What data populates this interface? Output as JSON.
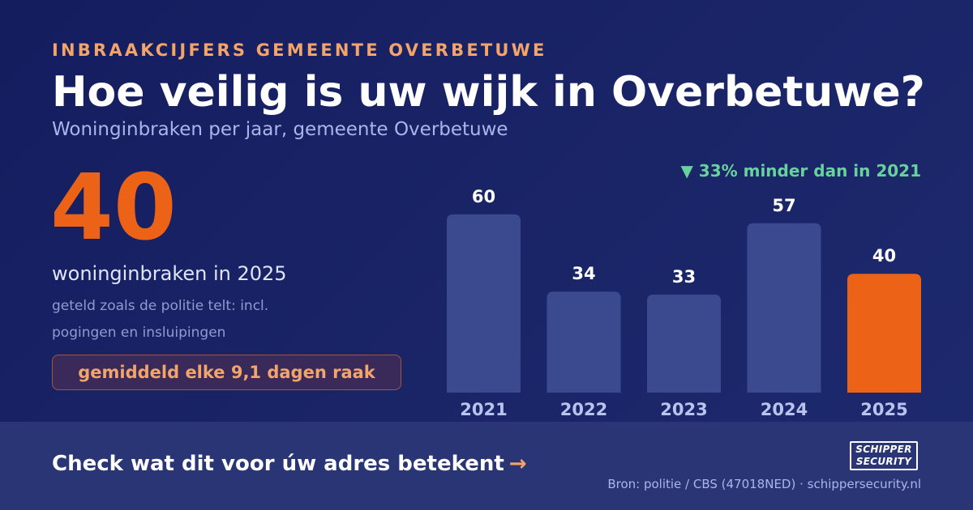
{
  "header": {
    "eyebrow": "INBRAAKCIJFERS GEMEENTE OVERBETUWE",
    "title": "Hoe veilig is uw wijk in Overbetuwe?",
    "subtitle": "Woninginbraken per jaar, gemeente Overbetuwe"
  },
  "highlight": {
    "number": "40",
    "caption": "woninginbraken in 2025",
    "note": "geteld zoals de politie telt: incl. pogingen en insluipingen",
    "pill": "gemiddeld elke 9,1 dagen raak",
    "change": "▼ 33% minder dan in 2021"
  },
  "chart_data": {
    "type": "bar",
    "title": "",
    "xlabel": "",
    "ylabel": "",
    "categories": [
      "2021",
      "2022",
      "2023",
      "2024",
      "2025"
    ],
    "values": [
      60,
      34,
      33,
      57,
      40
    ],
    "highlight_index": 4,
    "colors": {
      "bar": "#3b4a8f",
      "highlight": "#ec6317",
      "value_label": "#ffffff",
      "tick_label": "#b9c4ee"
    },
    "grid": false,
    "legend": "none"
  },
  "footer": {
    "cta": "Check wat dit voor úw adres betekent",
    "cta_arrow": "→",
    "logo_line1": "SCHIPPER",
    "logo_line2": "SECURITY",
    "source": "Bron: politie / CBS (47018NED) · schippersecurity.nl"
  }
}
